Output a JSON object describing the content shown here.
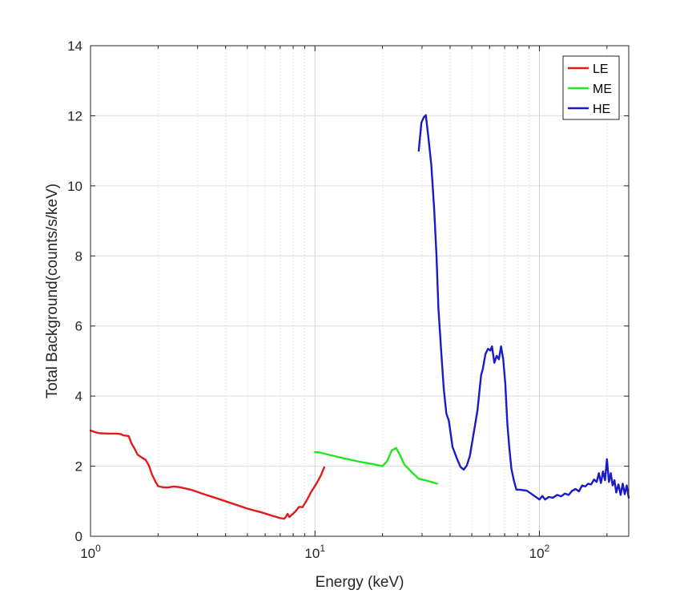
{
  "chart_data": {
    "type": "line",
    "xscale": "log",
    "xlabel": "Energy (keV)",
    "ylabel": "Total Background(counts/s/keV)",
    "xlim": [
      1,
      250
    ],
    "ylim": [
      0,
      14
    ],
    "grid": true,
    "legend_position": "top-right",
    "x_ticks": [
      {
        "value": 1,
        "base": "10",
        "exp": "0"
      },
      {
        "value": 10,
        "base": "10",
        "exp": "1"
      },
      {
        "value": 100,
        "base": "10",
        "exp": "2"
      }
    ],
    "y_ticks": [
      "0",
      "2",
      "4",
      "6",
      "8",
      "10",
      "12",
      "14"
    ],
    "series": [
      {
        "name": "LE",
        "color": "#e31a1c",
        "points": [
          [
            1.0,
            3.02
          ],
          [
            1.05,
            2.97
          ],
          [
            1.1,
            2.94
          ],
          [
            1.2,
            2.93
          ],
          [
            1.3,
            2.93
          ],
          [
            1.36,
            2.92
          ],
          [
            1.4,
            2.88
          ],
          [
            1.48,
            2.86
          ],
          [
            1.52,
            2.66
          ],
          [
            1.58,
            2.47
          ],
          [
            1.62,
            2.33
          ],
          [
            1.68,
            2.26
          ],
          [
            1.76,
            2.18
          ],
          [
            1.82,
            2.02
          ],
          [
            1.88,
            1.76
          ],
          [
            1.95,
            1.55
          ],
          [
            2.0,
            1.43
          ],
          [
            2.1,
            1.4
          ],
          [
            2.2,
            1.39
          ],
          [
            2.35,
            1.42
          ],
          [
            2.5,
            1.4
          ],
          [
            2.8,
            1.33
          ],
          [
            3.2,
            1.2
          ],
          [
            3.7,
            1.07
          ],
          [
            4.3,
            0.93
          ],
          [
            5.0,
            0.79
          ],
          [
            5.8,
            0.68
          ],
          [
            6.5,
            0.58
          ],
          [
            7.0,
            0.52
          ],
          [
            7.3,
            0.5
          ],
          [
            7.45,
            0.57
          ],
          [
            7.55,
            0.64
          ],
          [
            7.7,
            0.55
          ],
          [
            7.9,
            0.62
          ],
          [
            8.1,
            0.68
          ],
          [
            8.3,
            0.76
          ],
          [
            8.5,
            0.84
          ],
          [
            8.8,
            0.83
          ],
          [
            9.2,
            1.03
          ],
          [
            9.6,
            1.26
          ],
          [
            10.1,
            1.48
          ],
          [
            10.6,
            1.72
          ],
          [
            11.0,
            1.97
          ]
        ]
      },
      {
        "name": "ME",
        "color": "#22e622",
        "points": [
          [
            10.0,
            2.4
          ],
          [
            10.5,
            2.39
          ],
          [
            12,
            2.3
          ],
          [
            14,
            2.2
          ],
          [
            16,
            2.12
          ],
          [
            18,
            2.06
          ],
          [
            20,
            2.0
          ],
          [
            21,
            2.15
          ],
          [
            22,
            2.45
          ],
          [
            23,
            2.52
          ],
          [
            24,
            2.3
          ],
          [
            25,
            2.05
          ],
          [
            27,
            1.83
          ],
          [
            29,
            1.64
          ],
          [
            31,
            1.6
          ],
          [
            33,
            1.55
          ],
          [
            35,
            1.5
          ]
        ]
      },
      {
        "name": "HE",
        "color": "#1a1ac8",
        "points": [
          [
            29.0,
            11.0
          ],
          [
            29.8,
            11.8
          ],
          [
            30.5,
            11.95
          ],
          [
            31.2,
            12.02
          ],
          [
            32.0,
            11.4
          ],
          [
            33.0,
            10.6
          ],
          [
            34.0,
            9.3
          ],
          [
            34.8,
            8.0
          ],
          [
            35.5,
            6.5
          ],
          [
            36.5,
            5.3
          ],
          [
            37.5,
            4.2
          ],
          [
            38.5,
            3.5
          ],
          [
            39.5,
            3.3
          ],
          [
            41.0,
            2.55
          ],
          [
            43.0,
            2.2
          ],
          [
            44.5,
            1.98
          ],
          [
            46.0,
            1.9
          ],
          [
            47.5,
            2.02
          ],
          [
            49.0,
            2.3
          ],
          [
            51.0,
            2.95
          ],
          [
            53.0,
            3.6
          ],
          [
            55.0,
            4.6
          ],
          [
            56.0,
            4.78
          ],
          [
            57.5,
            5.2
          ],
          [
            59.0,
            5.35
          ],
          [
            60.5,
            5.3
          ],
          [
            61.5,
            5.42
          ],
          [
            63.0,
            4.95
          ],
          [
            64.5,
            5.15
          ],
          [
            66.0,
            5.05
          ],
          [
            67.5,
            5.42
          ],
          [
            69.0,
            5.05
          ],
          [
            70.5,
            4.35
          ],
          [
            72.0,
            3.2
          ],
          [
            73.5,
            2.5
          ],
          [
            75.0,
            1.93
          ],
          [
            77.0,
            1.58
          ],
          [
            79.0,
            1.33
          ],
          [
            82.0,
            1.33
          ],
          [
            88.0,
            1.3
          ],
          [
            95.0,
            1.15
          ],
          [
            100.0,
            1.05
          ],
          [
            103.0,
            1.15
          ],
          [
            106.0,
            1.05
          ],
          [
            110.0,
            1.12
          ],
          [
            115.0,
            1.1
          ],
          [
            120.0,
            1.18
          ],
          [
            125.0,
            1.14
          ],
          [
            130.0,
            1.22
          ],
          [
            135.0,
            1.18
          ],
          [
            140.0,
            1.3
          ],
          [
            145.0,
            1.35
          ],
          [
            150.0,
            1.28
          ],
          [
            155.0,
            1.45
          ],
          [
            160.0,
            1.42
          ],
          [
            165.0,
            1.5
          ],
          [
            170.0,
            1.48
          ],
          [
            175.0,
            1.62
          ],
          [
            180.0,
            1.55
          ],
          [
            184.0,
            1.8
          ],
          [
            188.0,
            1.52
          ],
          [
            192.0,
            1.85
          ],
          [
            196.0,
            1.6
          ],
          [
            200.0,
            2.2
          ],
          [
            204.0,
            1.55
          ],
          [
            208.0,
            1.8
          ],
          [
            212.0,
            1.45
          ],
          [
            216.0,
            1.6
          ],
          [
            220.0,
            1.25
          ],
          [
            225.0,
            1.48
          ],
          [
            230.0,
            1.18
          ],
          [
            235.0,
            1.5
          ],
          [
            240.0,
            1.2
          ],
          [
            245.0,
            1.45
          ],
          [
            250.0,
            1.1
          ]
        ]
      }
    ]
  }
}
